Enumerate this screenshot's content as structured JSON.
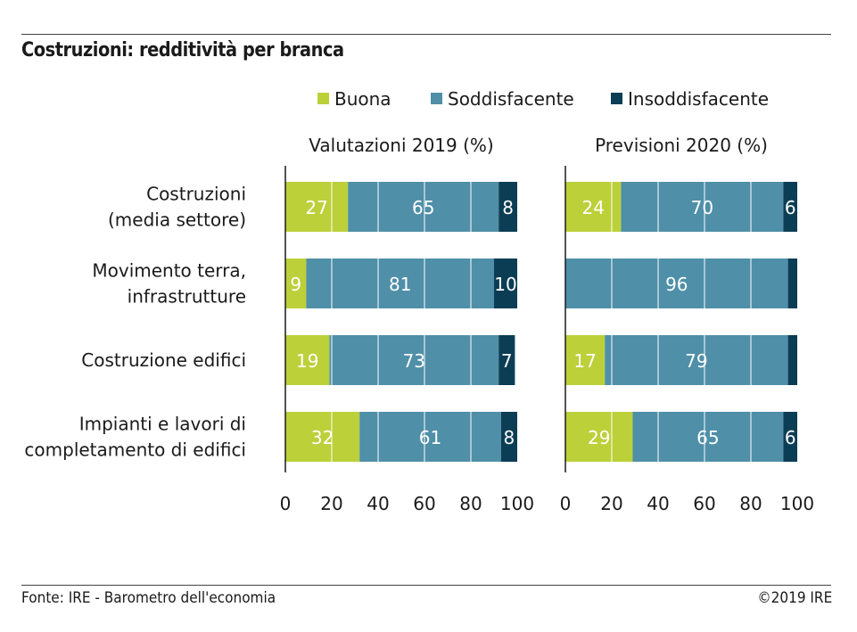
{
  "header": {
    "title": "Costruzioni: redditività per branca"
  },
  "footer": {
    "source": "Fonte: IRE - Barometro dell'economia",
    "copyright": "©2019 IRE"
  },
  "colors": {
    "Buona": "#bcd03a",
    "Soddisfacente": "#4f8fa8",
    "Insoddisfacente": "#0b3d55",
    "axis": "#1a1a1a",
    "grid": "#ffffff"
  },
  "chart_data": {
    "type": "bar",
    "orientation": "horizontal",
    "stacked": true,
    "title": "Costruzioni: redditività per branca",
    "legend": {
      "placement": "top",
      "entries": [
        "Buona",
        "Soddisfacente",
        "Insoddisfacente"
      ]
    },
    "categories": [
      "Costruzioni\n(media settore)",
      "Movimento terra,\ninfrastrutture",
      "Costruzione edifici",
      "Impianti e lavori di\ncompletamento di edifici"
    ],
    "panels": [
      {
        "subtitle": "Valutazioni 2019 (%)",
        "xlim": [
          0,
          100
        ],
        "ticks": [
          0,
          20,
          40,
          60,
          80,
          100
        ],
        "grid": true,
        "series": [
          {
            "name": "Buona",
            "values": [
              27,
              9,
              19,
              32
            ],
            "labels": [
              "27",
              "9",
              "19",
              "32"
            ]
          },
          {
            "name": "Soddisfacente",
            "values": [
              65,
              81,
              73,
              61
            ],
            "labels": [
              "65",
              "81",
              "73",
              "61"
            ]
          },
          {
            "name": "Insoddisfacente",
            "values": [
              8,
              10,
              7,
              8
            ],
            "labels": [
              "8",
              "10",
              "7",
              "8"
            ]
          }
        ]
      },
      {
        "subtitle": "Previsioni 2020 (%)",
        "xlim": [
          0,
          100
        ],
        "ticks": [
          0,
          20,
          40,
          60,
          80,
          100
        ],
        "grid": true,
        "series": [
          {
            "name": "Buona",
            "values": [
              24,
              0,
              17,
              29
            ],
            "labels": [
              "24",
              "",
              "17",
              "29"
            ]
          },
          {
            "name": "Soddisfacente",
            "values": [
              70,
              96,
              79,
              65
            ],
            "labels": [
              "70",
              "96",
              "79",
              "65"
            ]
          },
          {
            "name": "Insoddisfacente",
            "values": [
              6,
              4,
              4,
              6
            ],
            "labels": [
              "6",
              "",
              "",
              "6"
            ]
          }
        ]
      }
    ]
  }
}
